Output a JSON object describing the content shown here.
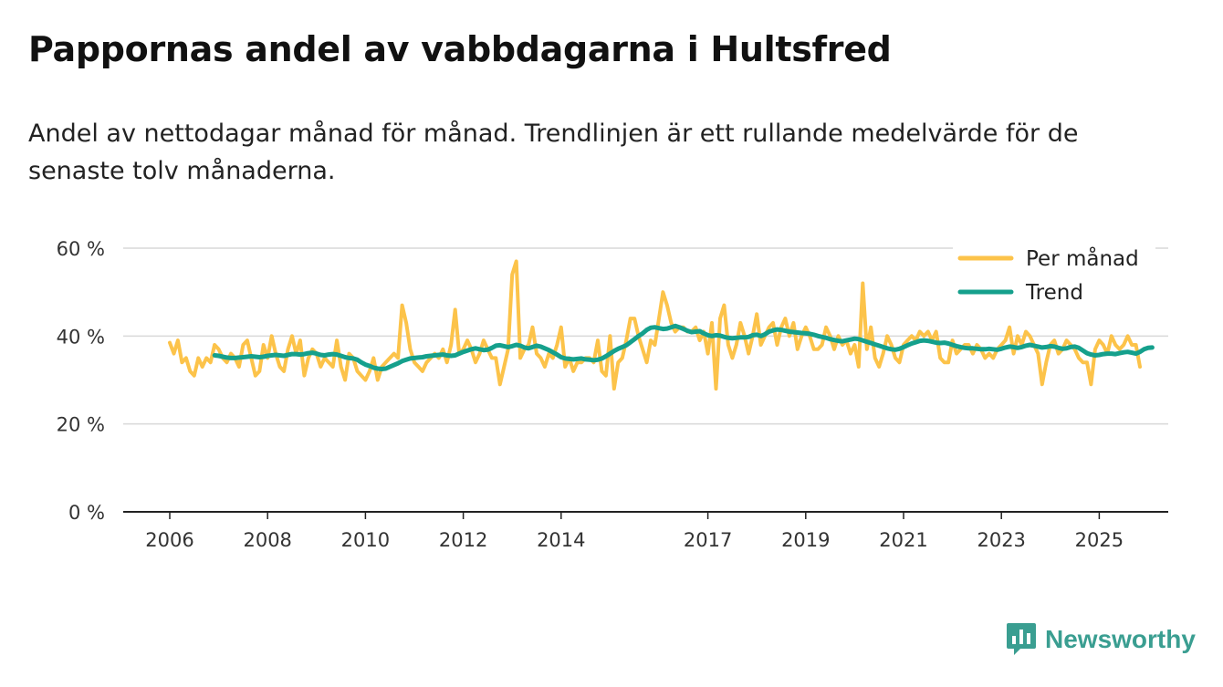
{
  "title": "Pappornas andel av vabbdagarna i Hultsfred",
  "subtitle": "Andel av nettodagar månad för månad. Trendlinjen är ett rullande medelvärde för de senaste tolv månaderna.",
  "brand": {
    "name": "Newsworthy",
    "icon": "bar-chart-speech-bubble-icon"
  },
  "colors": {
    "monthly": "#fcc34a",
    "trend": "#15a08c",
    "grid": "#d9d9d9",
    "axis": "#222222",
    "brand": "#3a9e91"
  },
  "chart_data": {
    "type": "line",
    "title": "Pappornas andel av vabbdagarna i Hultsfred",
    "xlabel": "",
    "ylabel": "",
    "xlim": [
      2006.0,
      2025.9
    ],
    "ylim": [
      0,
      60
    ],
    "y_ticks": [
      0,
      20,
      40,
      60
    ],
    "y_tick_labels": [
      "0 %",
      "20 %",
      "40 %",
      "60 %"
    ],
    "x_ticks": [
      2006,
      2008,
      2010,
      2012,
      2014,
      2017,
      2019,
      2021,
      2023,
      2025
    ],
    "x_tick_labels": [
      "2006",
      "2008",
      "2010",
      "2012",
      "2014",
      "2017",
      "2019",
      "2021",
      "2023",
      "2025"
    ],
    "legend": {
      "position": "top-right",
      "entries": [
        "Per månad",
        "Trend"
      ]
    },
    "series": [
      {
        "name": "Per månad",
        "start": 2006.0,
        "step": 0.08333,
        "values": [
          38.5,
          36,
          39,
          34,
          35,
          32,
          31,
          35,
          33,
          35,
          34,
          38,
          37,
          35,
          34,
          36,
          35,
          33,
          38,
          39,
          35,
          31,
          32,
          38,
          35,
          40,
          36,
          33,
          32,
          37,
          40,
          36,
          39,
          31,
          35,
          37,
          36,
          33,
          35,
          34,
          33,
          39,
          33,
          30,
          36,
          35,
          32,
          31,
          30,
          32,
          35,
          30,
          33,
          34,
          35,
          36,
          35,
          47,
          43,
          37,
          34,
          33,
          32,
          34,
          35,
          36,
          35,
          37,
          34,
          38,
          46,
          36,
          37,
          39,
          37,
          34,
          36,
          39,
          37,
          35,
          35,
          29,
          33,
          37,
          54,
          57,
          35,
          37,
          38,
          42,
          36,
          35,
          33,
          36,
          35,
          38,
          42,
          33,
          35,
          32,
          34,
          34,
          35,
          35,
          34,
          39,
          32,
          31,
          40,
          28,
          34,
          35,
          39,
          44,
          44,
          40,
          37,
          34,
          39,
          38,
          44,
          50,
          47,
          43,
          41,
          42,
          42,
          41,
          41,
          42,
          39,
          41,
          36,
          43,
          28,
          44,
          47,
          38,
          35,
          38,
          43,
          40,
          36,
          40,
          45,
          38,
          40,
          42,
          43,
          38,
          42,
          44,
          40,
          43,
          37,
          40,
          42,
          40,
          37,
          37,
          38,
          42,
          40,
          37,
          40,
          38,
          39,
          36,
          38,
          33,
          52,
          37,
          42,
          35,
          33,
          36,
          40,
          38,
          35,
          34,
          38,
          39,
          40,
          39,
          41,
          40,
          41,
          39,
          41,
          35,
          34,
          34,
          39,
          36,
          37,
          38,
          38,
          36,
          38,
          37,
          35,
          36,
          35,
          37,
          38,
          39,
          42,
          36,
          40,
          38,
          41,
          40,
          38,
          36,
          29,
          34,
          38,
          39,
          36,
          37,
          39,
          38,
          37,
          35,
          34,
          34,
          29,
          37,
          39,
          38,
          36,
          40,
          38,
          37,
          38,
          40,
          38,
          38,
          33
        ]
      },
      {
        "name": "Trend",
        "start": 2006.917,
        "step": 0.08333,
        "values": [
          35.6,
          35.5,
          35.3,
          35.1,
          35.0,
          35.0,
          35.1,
          35.2,
          35.3,
          35.4,
          35.3,
          35.2,
          35.3,
          35.5,
          35.6,
          35.7,
          35.6,
          35.5,
          35.7,
          35.9,
          35.9,
          35.8,
          35.9,
          36.1,
          36.2,
          36.0,
          35.7,
          35.6,
          35.8,
          35.9,
          35.8,
          35.5,
          35.2,
          35.0,
          34.9,
          34.6,
          34.0,
          33.5,
          33.2,
          32.8,
          32.6,
          32.5,
          32.6,
          33.0,
          33.4,
          33.8,
          34.3,
          34.6,
          34.9,
          35.0,
          35.1,
          35.2,
          35.4,
          35.5,
          35.6,
          35.7,
          35.8,
          35.6,
          35.5,
          35.6,
          36.0,
          36.4,
          36.7,
          37.0,
          37.2,
          37.0,
          36.8,
          36.9,
          37.3,
          37.8,
          37.9,
          37.7,
          37.5,
          37.7,
          38.0,
          37.8,
          37.4,
          37.2,
          37.5,
          37.8,
          37.6,
          37.2,
          36.8,
          36.3,
          35.8,
          35.2,
          34.9,
          34.8,
          34.7,
          34.8,
          34.9,
          34.7,
          34.6,
          34.5,
          34.6,
          34.9,
          35.4,
          36.0,
          36.6,
          37.1,
          37.5,
          37.9,
          38.6,
          39.3,
          40.0,
          40.6,
          41.4,
          41.9,
          42.0,
          41.8,
          41.6,
          41.7,
          42.0,
          42.3,
          42.0,
          41.6,
          41.2,
          40.9,
          41.0,
          41.1,
          40.6,
          40.2,
          40.0,
          40.2,
          40.1,
          39.8,
          39.6,
          39.5,
          39.6,
          39.7,
          39.7,
          39.8,
          40.2,
          40.3,
          40.0,
          40.4,
          41.0,
          41.3,
          41.5,
          41.4,
          41.2,
          41.0,
          40.9,
          40.8,
          40.7,
          40.6,
          40.5,
          40.3,
          40.0,
          39.8,
          39.6,
          39.3,
          39.1,
          38.9,
          38.8,
          39.0,
          39.2,
          39.4,
          39.3,
          39.0,
          38.7,
          38.4,
          38.1,
          37.8,
          37.5,
          37.2,
          37.0,
          36.9,
          37.1,
          37.5,
          37.9,
          38.3,
          38.6,
          38.9,
          39.0,
          38.9,
          38.7,
          38.5,
          38.4,
          38.5,
          38.3,
          38.0,
          37.7,
          37.5,
          37.3,
          37.2,
          37.2,
          37.1,
          37.0,
          37.0,
          37.1,
          37.0,
          36.9,
          37.1,
          37.4,
          37.6,
          37.5,
          37.3,
          37.5,
          37.8,
          38.0,
          37.8,
          37.6,
          37.4,
          37.5,
          37.7,
          37.6,
          37.3,
          37.1,
          37.2,
          37.5,
          37.6,
          37.3,
          36.7,
          36.1,
          35.8,
          35.6,
          35.7,
          35.9,
          36.0,
          36.0,
          35.9,
          36.1,
          36.3,
          36.4,
          36.2,
          36.0,
          36.4,
          37.0,
          37.3,
          37.4
        ]
      }
    ]
  }
}
